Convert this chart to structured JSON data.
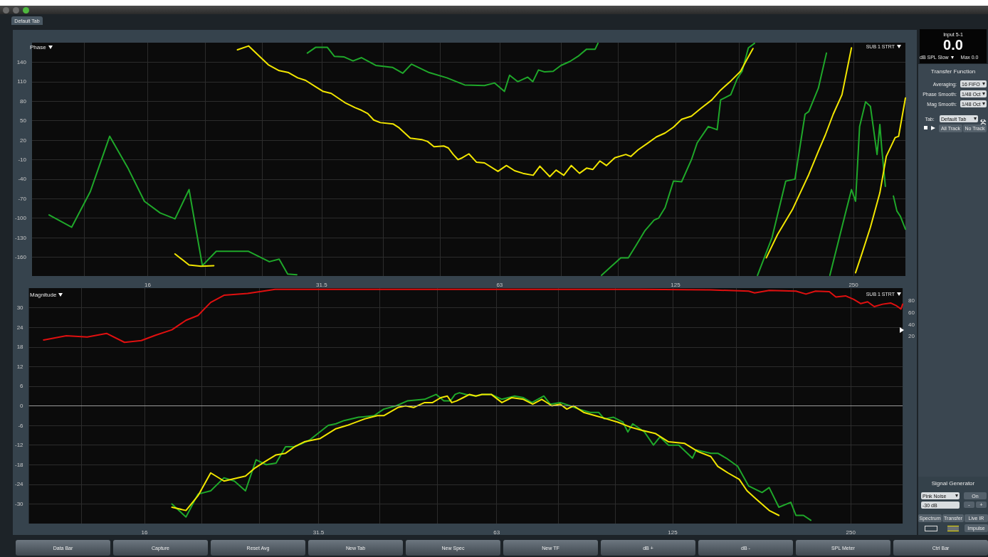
{
  "chart_data": [
    {
      "type": "line",
      "title": "Phase",
      "annotations": [
        "SUB 1 STRT"
      ],
      "log": "x",
      "grid": true,
      "marker": "none",
      "line_style": "solid",
      "xlim": [
        10.2,
        306
      ],
      "xticks": [
        {
          "value": 12.5,
          "label": null
        },
        16,
        {
          "value": 20,
          "label": null
        },
        {
          "value": 25,
          "label": null
        },
        31.5,
        {
          "value": 40,
          "label": null
        },
        {
          "value": 50,
          "label": null
        },
        63,
        {
          "value": 80,
          "label": null
        },
        {
          "value": 100,
          "label": null
        },
        125,
        {
          "value": 160,
          "label": null
        },
        {
          "value": 200,
          "label": null
        },
        250
      ],
      "ylim": [
        -189,
        170
      ],
      "yticks": [
        -160,
        -130,
        -100,
        -70,
        -40,
        -10,
        20,
        50,
        80,
        110,
        140
      ],
      "series": [
        {
          "color": "#1fa82a",
          "x": [
            10.9,
            11.9,
            12.8,
            13.8,
            14.8,
            15.8,
            16.8,
            17.8,
            18.8,
            19.8,
            20.9,
            23.7,
            25.7,
            26.7,
            27.6,
            28.6,
            29.2,
            29.8,
            30.8,
            32.2,
            33.1,
            34.4,
            35.6,
            36.8,
            38.9,
            41.5,
            43.2,
            44.7,
            47.9,
            51.3,
            55.0,
            59.4,
            61.8,
            64.2,
            65.5,
            67.6,
            70.3,
            71.7,
            73.3,
            75.1,
            77.6,
            80.0,
            82.8,
            85.5,
            88.4,
            91.4,
            92.4,
            93.0,
            93.7,
            97.4,
            101,
            104,
            107,
            111,
            115,
            117,
            120,
            124,
            128,
            133,
            136,
            142,
            147,
            149,
            155,
            159,
            162,
            166,
            170,
            171,
            172,
            182,
            192,
            199,
            207,
            210,
            218,
            225,
            226,
            228,
            242,
            248,
            252,
            256,
            262,
            267,
            274,
            277,
            279,
            283,
            288,
            292,
            296,
            300,
            306
          ],
          "values": [
            -95,
            -114,
            -59,
            26,
            -22,
            -74,
            -92,
            -101,
            -56,
            -173,
            -151,
            -151,
            -167,
            -163,
            -186,
            -187,
            null,
            154,
            163,
            163,
            149,
            148,
            142,
            147,
            135,
            132,
            123,
            137,
            124,
            116,
            105,
            104,
            108,
            95,
            120,
            110,
            117,
            110,
            128,
            125,
            126,
            135,
            141,
            149,
            160,
            160,
            169,
            null,
            -188,
            -174,
            -161,
            -161,
            -143,
            -119,
            -103,
            -100,
            -84,
            -43,
            -44,
            -10,
            16,
            41,
            36,
            82,
            90,
            115,
            126,
            162,
            169,
            null,
            -188,
            -130,
            -43,
            -40,
            60,
            64,
            100,
            154,
            null,
            -188,
            -94,
            -56,
            -74,
            41,
            79,
            72,
            -2,
            44,
            8,
            -51,
            null,
            -66,
            -89,
            -97,
            -117
          ]
        },
        {
          "color": "#f2e600",
          "x": [
            17.8,
            18.8,
            19.7,
            20.7,
            22.2,
            22.7,
            23.7,
            25.6,
            26.7,
            27.7,
            28.7,
            29.6,
            30.8,
            31.7,
            32.7,
            34.6,
            35.9,
            36.8,
            37.7,
            38.6,
            39.6,
            41.6,
            42.6,
            44.5,
            46.5,
            47.6,
            48.8,
            50.7,
            51.6,
            52.6,
            53.6,
            54.5,
            55.9,
            57.6,
            59.4,
            62.6,
            64.7,
            66.8,
            69.0,
            71.8,
            73.7,
            76.6,
            78.5,
            80.9,
            83.3,
            86.0,
            88.4,
            90.6,
            93.1,
            95.5,
            98.7,
            103,
            105,
            108,
            112,
            116,
            120,
            124,
            128,
            133,
            138,
            144,
            149,
            155,
            161,
            165,
            169,
            171,
            178,
            186,
            197,
            210,
            218,
            224,
            231,
            239,
            248,
            250,
            252,
            258,
            267,
            277,
            284,
            294,
            298,
            306
          ],
          "values": [
            -155,
            -172,
            -174,
            -173,
            null,
            159,
            165,
            136,
            127,
            124,
            116,
            112,
            102,
            95,
            92,
            77,
            70,
            66,
            61,
            51,
            47,
            45,
            39,
            23,
            21,
            18,
            10,
            11,
            8,
            -2,
            -10,
            -7,
            -1,
            -14,
            -15,
            -28,
            -19,
            -27,
            -31,
            -34,
            -20,
            -36,
            -26,
            -34,
            -19,
            -31,
            -23,
            -25,
            -12,
            -19,
            -7,
            -2,
            -5,
            5,
            15,
            25,
            31,
            40,
            52,
            57,
            69,
            82,
            97,
            111,
            126,
            144,
            161,
            null,
            -161,
            -125,
            -87,
            -33,
            3,
            28,
            60,
            90,
            162,
            null,
            -184,
            -156,
            -114,
            -61,
            -5,
            24,
            26,
            85
          ]
        }
      ]
    },
    {
      "type": "line",
      "title": "Magnitude",
      "annotations": [
        "SUB 1 STRT"
      ],
      "log": "x",
      "grid": true,
      "marker": "none",
      "line_style": "solid",
      "xlim": [
        10.2,
        306
      ],
      "xticks": [
        {
          "value": 12.5,
          "label": null
        },
        16,
        {
          "value": 20,
          "label": null
        },
        {
          "value": 25,
          "label": null
        },
        31.5,
        {
          "value": 40,
          "label": null
        },
        {
          "value": 50,
          "label": null
        },
        63,
        {
          "value": 80,
          "label": null
        },
        {
          "value": 100,
          "label": null
        },
        125,
        {
          "value": 160,
          "label": null
        },
        {
          "value": 200,
          "label": null
        },
        250
      ],
      "ylim": [
        -36,
        36
      ],
      "yticks": [
        -30,
        -24,
        -18,
        -12,
        -6,
        0,
        6,
        12,
        18,
        24,
        30
      ],
      "y2lim": [
        -294,
        101
      ],
      "y2ticks": [
        20,
        40,
        60,
        80
      ],
      "ref_lines": [
        {
          "axis": "y",
          "value": 0,
          "color": "#9a9a9a"
        }
      ],
      "series": [
        {
          "color": "#e01010",
          "axis": "y2",
          "x": [
            10.8,
            11.8,
            12.8,
            13.8,
            14.8,
            15.8,
            16.7,
            17.8,
            18.8,
            19.7,
            20.7,
            21.8,
            23.9,
            25.4,
            26.6,
            28.7,
            31.6,
            47.9,
            83.2,
            110,
            145,
            168,
            172,
            182,
            202,
            210,
            218,
            230,
            236,
            245,
            253,
            260,
            267,
            274,
            283,
            292,
            298,
            304,
            306
          ],
          "values": [
            14,
            21,
            19,
            25,
            10,
            13,
            22,
            31,
            47,
            55,
            77,
            89,
            92,
            96,
            99,
            99,
            99,
            99,
            99,
            99,
            98,
            96,
            93,
            97,
            96,
            91,
            96,
            95,
            86,
            88,
            82,
            75,
            78,
            70,
            74,
            76,
            72,
            66,
            74
          ]
        },
        {
          "color": "#1fa82a",
          "x": [
            17.8,
            18.8,
            19.7,
            20.7,
            21.8,
            22.7,
            23.7,
            24.7,
            25.7,
            26.7,
            27.7,
            28.7,
            30.4,
            32.7,
            33.7,
            34.8,
            36.8,
            39.1,
            40.6,
            42.6,
            44.5,
            47.6,
            49.8,
            51.3,
            52.6,
            53.6,
            54.5,
            55.9,
            58.1,
            59.5,
            61.7,
            64.3,
            67.6,
            69.9,
            72.3,
            75.7,
            77.6,
            80.7,
            83.9,
            86.7,
            90.6,
            93.7,
            95.8,
            99.3,
            103,
            105,
            107,
            112,
            116,
            119,
            123,
            128,
            135,
            137,
            145,
            149,
            154,
            161,
            168,
            177,
            182,
            189,
            198,
            202,
            208,
            214
          ],
          "values": [
            -30,
            -34,
            -27,
            -26,
            -22,
            -23,
            -26,
            -16.5,
            -18,
            -17.5,
            -12.5,
            -12.5,
            -10.5,
            -6,
            -5.5,
            -4.5,
            -3.5,
            -3,
            -1,
            0,
            1.5,
            2,
            3.5,
            1.5,
            1.5,
            3.5,
            4,
            3.5,
            3,
            3.5,
            3.5,
            2,
            3,
            2.5,
            1,
            3,
            0.5,
            1,
            0,
            -1,
            -2,
            -2,
            -4,
            -3.5,
            -5,
            -8,
            -5.5,
            -8,
            -12,
            -9.5,
            -12,
            -12,
            -16,
            -13.5,
            -14.5,
            -14.5,
            -16,
            -18.5,
            -24.5,
            -26.5,
            -25,
            -31,
            -29.5,
            -33.5,
            -33.5,
            -35
          ]
        },
        {
          "color": "#f2e600",
          "x": [
            17.8,
            18.8,
            19.7,
            20.7,
            21.8,
            23.7,
            24.6,
            25.6,
            26.7,
            27.7,
            28.7,
            29.8,
            31.7,
            33.7,
            35.2,
            37.7,
            39.6,
            40.6,
            42.9,
            44.2,
            45.6,
            47.6,
            49.1,
            50.7,
            52.0,
            52.9,
            53.9,
            55.3,
            56.7,
            58.1,
            59.5,
            61.7,
            64.3,
            66.8,
            69.9,
            72.5,
            75.1,
            78.1,
            80.7,
            82.8,
            85.0,
            88.4,
            92.4,
            96.7,
            101,
            106,
            111,
            117,
            123,
            131,
            138,
            145,
            149,
            155,
            162,
            167,
            173,
            182,
            189
          ],
          "values": [
            -31,
            -32,
            -27.5,
            -20.5,
            -23,
            -21.5,
            -19,
            -17,
            -15,
            -14.5,
            -12.5,
            -11,
            -10,
            -7,
            -6,
            -4,
            -3,
            -3,
            -0.5,
            0,
            -0.5,
            1,
            1,
            2.5,
            3,
            1,
            1.5,
            2.5,
            3.5,
            3,
            3.5,
            3.5,
            1,
            2.5,
            2,
            0.5,
            2,
            0,
            0.5,
            -1,
            0,
            -2,
            -3,
            -4,
            -5,
            -6.5,
            -7.5,
            -8.5,
            -11,
            -11.5,
            -14,
            -15.5,
            -18.5,
            -20.5,
            -22.5,
            -26,
            -28.5,
            -32,
            -33.5
          ]
        }
      ]
    },
    {
      "type": "other",
      "annotations": [
        "Default Tab",
        "Input 5-1",
        "0.0",
        "dB SPL Slow",
        "Max 0.0",
        "Transfer Function",
        "Averaging:",
        "16 FIFO",
        "Phase Smooth:",
        "1/48 Oct",
        "Mag Smooth:",
        "1/48 Oct",
        "Tab:",
        "Default Tab",
        "All Track",
        "No Track",
        "Signal Generator",
        "Pink Noise",
        "On",
        "-30 dB",
        "-",
        "+",
        "Spectrum",
        "Transfer",
        "Live IR",
        "Impulse",
        "Data Bar",
        "Capture",
        "Reset Avg",
        "New Tab",
        "New Spec",
        "New TF",
        "dB +",
        "dB -",
        "SPL Meter",
        "Ctrl Bar"
      ]
    }
  ]
}
